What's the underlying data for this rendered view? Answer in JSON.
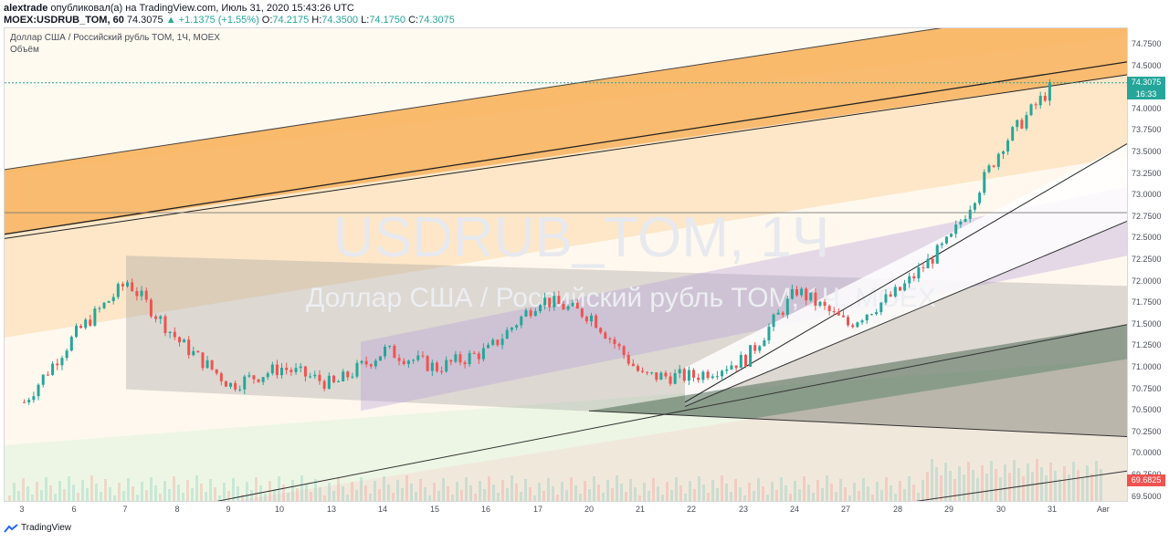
{
  "header": {
    "author": "alextrade",
    "published": "опубликовал(а) на TradingView.com, Июль 31, 2020 15:43:26 UTC",
    "symbol": "MOEX:USDRUB_TOM, 60",
    "last": "74.3075",
    "change": "▲ +1.1375 (+1.55%)",
    "o_label": "O:",
    "o_value": "74.2175",
    "h_label": "H:",
    "h_value": "74.3500",
    "l_label": "L:",
    "l_value": "74.1750",
    "c_label": "C:",
    "c_value": "74.3075"
  },
  "legend": {
    "title": "Доллар США / Российский рубль TOM, 1Ч, MOEX",
    "volume": "Объём"
  },
  "watermark": {
    "symbol": "USDRUB_TOM, 1Ч",
    "name": "Доллар США / Российский рубль TOM, 1Ч, MOEX"
  },
  "price_tag": "74.3075",
  "time_tag": "16:33",
  "low_tag": "69.6825",
  "footer": {
    "brand": "TradingView"
  },
  "colors": {
    "up": "#26a69a",
    "down": "#ef5350",
    "orange": "#f7a440",
    "purple": "#b39ddb",
    "gray": "#9e9e9e",
    "green": "#66bb6a"
  },
  "chart_data": {
    "type": "candlestick",
    "title": "Доллар США / Российский рубль TOM, 1Ч, MOEX",
    "ylim": [
      69.3,
      75.0
    ],
    "y_ticks": [
      "74.7500",
      "74.5000",
      "74.2500",
      "74.0000",
      "73.7500",
      "73.5000",
      "73.2500",
      "73.0000",
      "72.7500",
      "72.5000",
      "72.2500",
      "72.0000",
      "71.7500",
      "71.5000",
      "71.2500",
      "71.0000",
      "70.7500",
      "70.5000",
      "70.2500",
      "70.0000",
      "69.7500",
      "69.5000"
    ],
    "x_ticks": [
      "3",
      "6",
      "7",
      "8",
      "9",
      "10",
      "13",
      "14",
      "15",
      "16",
      "17",
      "20",
      "21",
      "22",
      "23",
      "24",
      "27",
      "28",
      "29",
      "30",
      "31",
      "Авг"
    ],
    "keypoints": [
      {
        "x": "3",
        "y": 70.6
      },
      {
        "x": "6",
        "y": 71.4
      },
      {
        "x": "7",
        "y": 72.0
      },
      {
        "x": "8",
        "y": 71.3
      },
      {
        "x": "9",
        "y": 70.8
      },
      {
        "x": "10",
        "y": 71.0
      },
      {
        "x": "13",
        "y": 70.8
      },
      {
        "x": "14",
        "y": 71.2
      },
      {
        "x": "15",
        "y": 71.0
      },
      {
        "x": "16",
        "y": 71.2
      },
      {
        "x": "17",
        "y": 71.8
      },
      {
        "x": "20",
        "y": 71.6
      },
      {
        "x": "21",
        "y": 70.9
      },
      {
        "x": "22",
        "y": 70.9
      },
      {
        "x": "23",
        "y": 71.1
      },
      {
        "x": "24",
        "y": 71.9
      },
      {
        "x": "27",
        "y": 71.5
      },
      {
        "x": "28",
        "y": 71.9
      },
      {
        "x": "29",
        "y": 72.5
      },
      {
        "x": "30",
        "y": 73.6
      },
      {
        "x": "31",
        "y": 74.3
      }
    ],
    "last_price": 74.3075,
    "horizontal_line": 74.3075
  }
}
